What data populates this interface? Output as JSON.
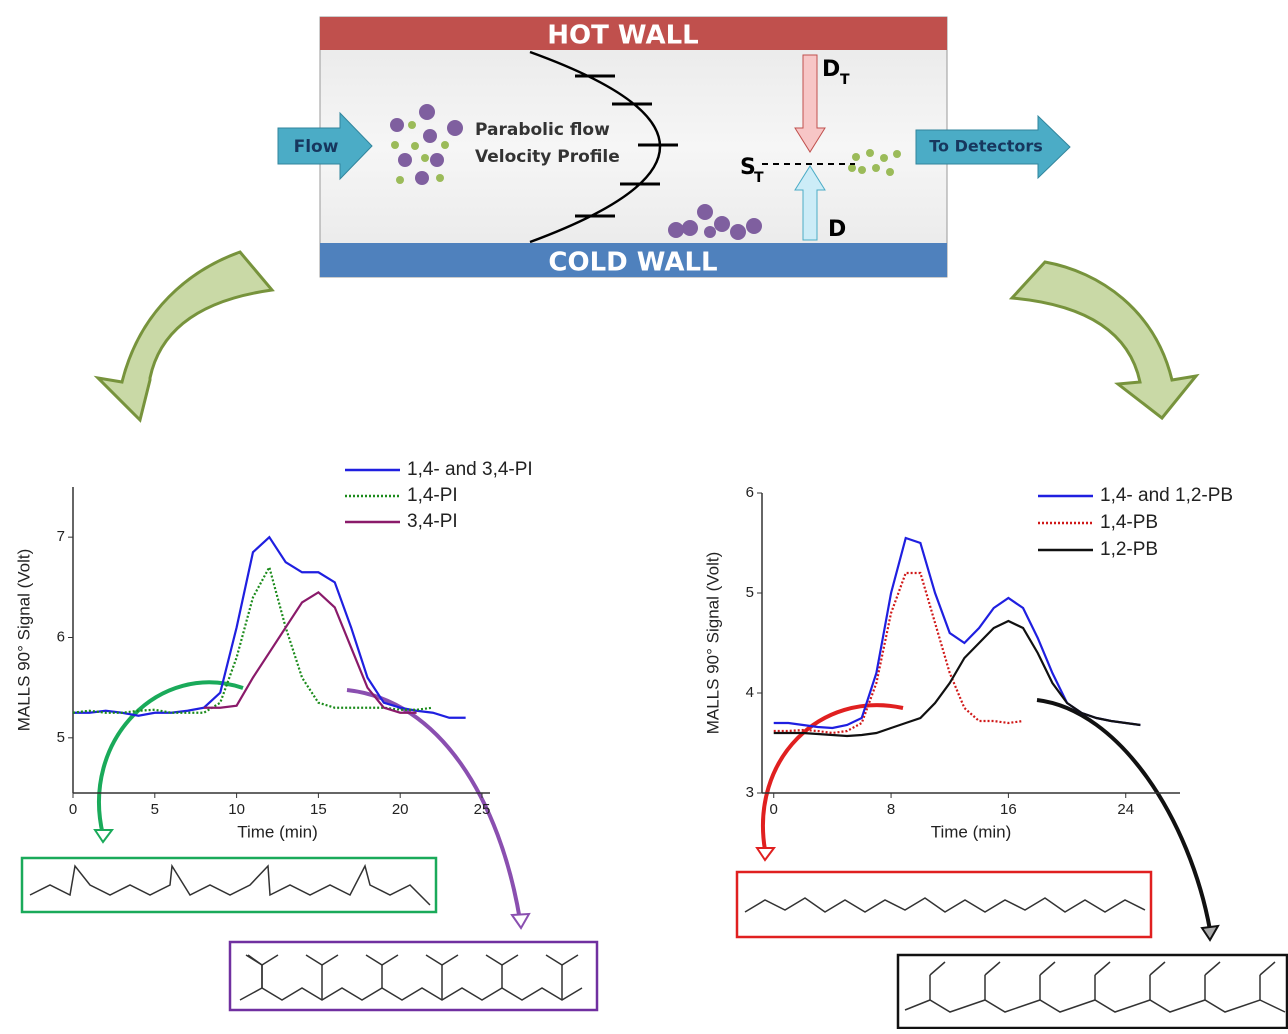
{
  "diagram": {
    "hot_wall": "HOT WALL",
    "cold_wall": "COLD WALL",
    "flow": "Flow",
    "profile_line1": "Parabolic flow",
    "profile_line2": "Velocity Profile",
    "dt": {
      "main": "D",
      "sub": "T"
    },
    "st": {
      "main": "S",
      "sub": "T"
    },
    "d": "D",
    "to_detectors": "To Detectors"
  },
  "chart_data": [
    {
      "type": "line",
      "x_label": "Time (min)",
      "y_label": "MALLS 90° Signal (Volt)",
      "x": [
        0,
        1,
        2,
        3,
        4,
        5,
        6,
        7,
        8,
        9,
        10,
        11,
        12,
        13,
        14,
        15,
        16,
        17,
        18,
        19,
        20,
        21,
        22,
        23,
        24
      ],
      "series": [
        {
          "name": "1,4- and 3,4-PI",
          "color": "#1f1fe0",
          "style": "solid",
          "values": [
            5.25,
            5.25,
            5.27,
            5.25,
            5.22,
            5.25,
            5.25,
            5.27,
            5.3,
            5.45,
            6.1,
            6.85,
            7.0,
            6.75,
            6.65,
            6.65,
            6.55,
            6.1,
            5.6,
            5.35,
            5.3,
            5.27,
            5.25,
            5.2,
            5.2
          ]
        },
        {
          "name": "1,4-PI",
          "color": "#1a8a1a",
          "style": "dotted",
          "values": [
            5.25,
            5.27,
            5.25,
            5.25,
            5.27,
            5.28,
            5.25,
            5.25,
            5.25,
            5.35,
            5.8,
            6.4,
            6.7,
            6.1,
            5.6,
            5.35,
            5.3,
            5.3,
            5.3,
            5.3,
            5.28,
            5.28,
            5.3,
            null,
            null
          ]
        },
        {
          "name": "3,4-PI",
          "color": "#8a1a6a",
          "style": "solid",
          "values": [
            null,
            null,
            null,
            null,
            null,
            null,
            null,
            null,
            5.3,
            5.3,
            5.32,
            5.6,
            5.85,
            6.1,
            6.35,
            6.45,
            6.3,
            5.9,
            5.5,
            5.3,
            5.25,
            5.25,
            null,
            null,
            null
          ]
        }
      ],
      "xlim": [
        0,
        25
      ],
      "xticks": [
        0,
        5,
        10,
        15,
        20,
        25
      ],
      "ylim": [
        4.45,
        7.5
      ],
      "yticks": [
        5,
        6,
        7
      ]
    },
    {
      "type": "line",
      "x_label": "Time (min)",
      "y_label": "MALLS 90° Signal (Volt)",
      "x": [
        0,
        1,
        2,
        3,
        4,
        5,
        6,
        7,
        8,
        9,
        10,
        11,
        12,
        13,
        14,
        15,
        16,
        17,
        18,
        19,
        20,
        21,
        22,
        23,
        24,
        25
      ],
      "series": [
        {
          "name": "1,4- and 1,2-PB",
          "color": "#1f1fe0",
          "style": "solid",
          "values": [
            3.7,
            3.7,
            3.68,
            3.66,
            3.65,
            3.68,
            3.75,
            4.2,
            5.0,
            5.55,
            5.5,
            5.0,
            4.6,
            4.5,
            4.65,
            4.85,
            4.95,
            4.85,
            4.55,
            4.2,
            3.9,
            3.8,
            3.75,
            3.72,
            3.7,
            3.68
          ]
        },
        {
          "name": "1,4-PB",
          "color": "#d01818",
          "style": "dotted",
          "values": [
            3.62,
            3.62,
            3.63,
            3.62,
            3.6,
            3.62,
            3.7,
            4.1,
            4.8,
            5.2,
            5.2,
            4.7,
            4.2,
            3.85,
            3.72,
            3.72,
            3.7,
            3.72,
            null,
            null,
            null,
            null,
            null,
            null,
            null,
            null
          ]
        },
        {
          "name": "1,2-PB",
          "color": "#111111",
          "style": "solid",
          "values": [
            3.6,
            3.6,
            3.6,
            3.59,
            3.58,
            3.57,
            3.58,
            3.6,
            3.65,
            3.7,
            3.75,
            3.9,
            4.1,
            4.35,
            4.5,
            4.65,
            4.72,
            4.65,
            4.4,
            4.1,
            3.9,
            3.8,
            3.75,
            3.72,
            3.7,
            3.68
          ]
        }
      ],
      "xlim": [
        -0.8,
        27.7
      ],
      "xticks": [
        0,
        8,
        16,
        24
      ],
      "ylim": [
        3,
        6
      ],
      "yticks": [
        3,
        4,
        5,
        6
      ]
    }
  ]
}
